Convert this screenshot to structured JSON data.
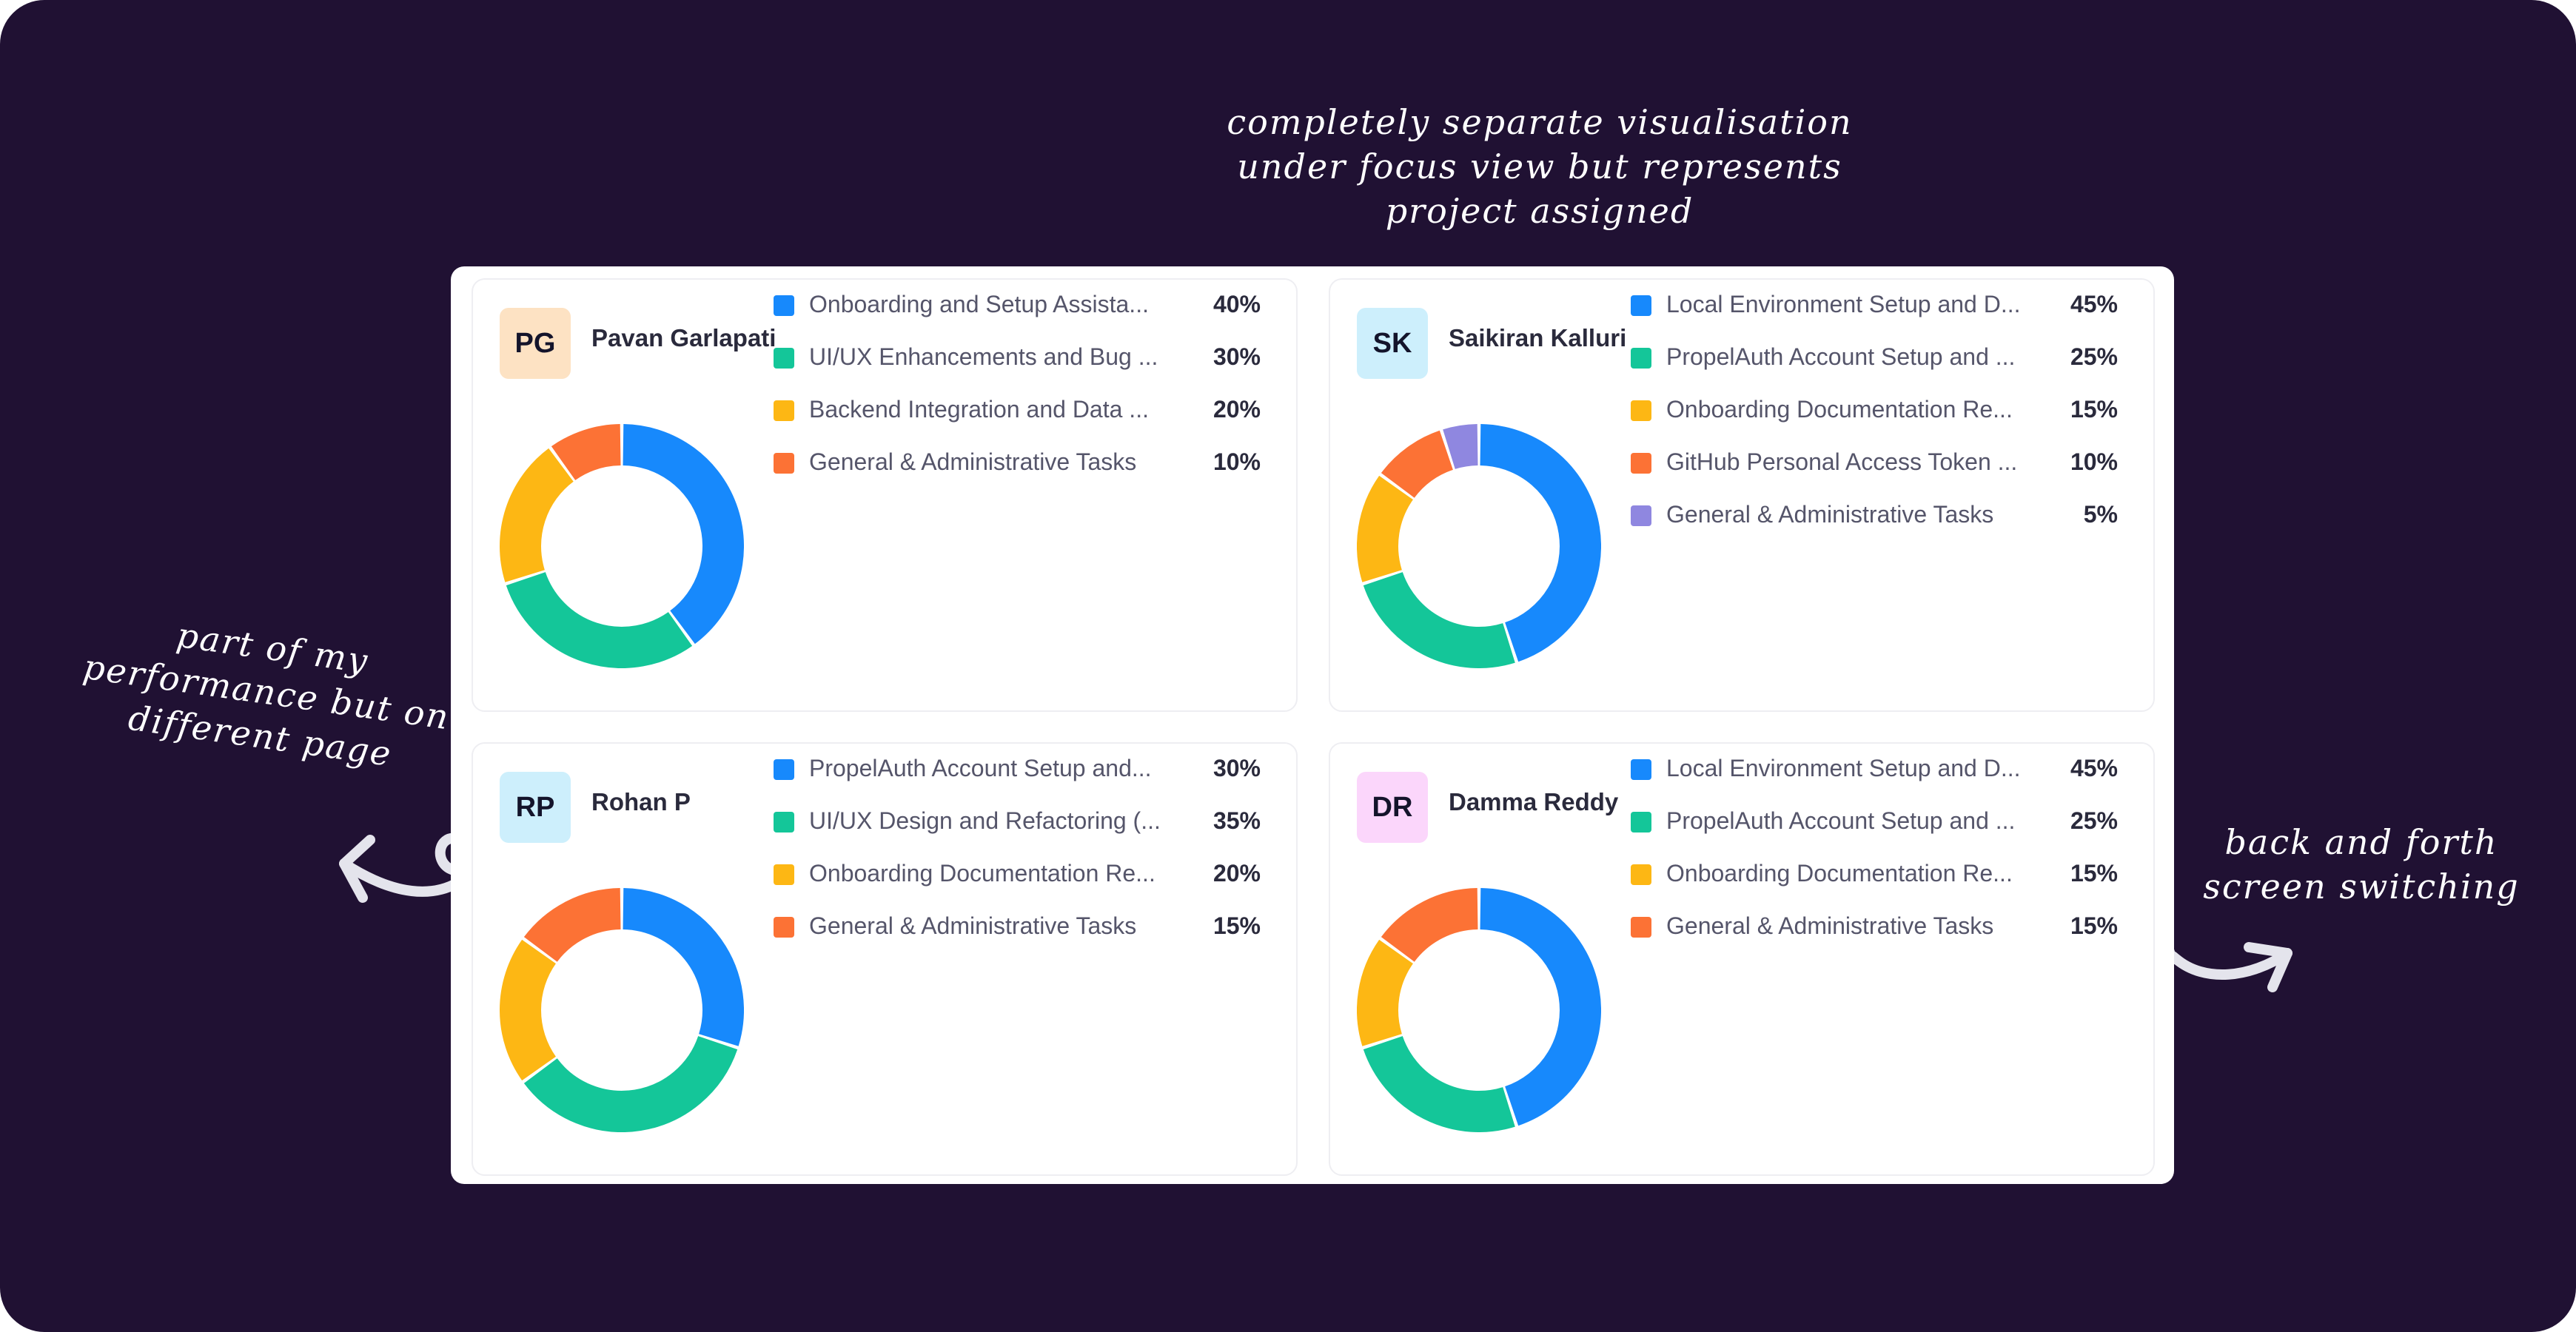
{
  "annotations": {
    "top": [
      "completely separate visualisation",
      "under focus view but represents",
      "project assigned"
    ],
    "left": [
      "part of my",
      "performance but on",
      "different page"
    ],
    "right": [
      "back and forth",
      "screen switching"
    ]
  },
  "colors": {
    "background": "#201133",
    "blue": "#1789fc",
    "green": "#14c699",
    "yellow": "#fdb714",
    "orange": "#fc7235",
    "purple": "#8f87e0"
  },
  "members": [
    {
      "initials": "PG",
      "name": "Pavan Garlapati",
      "avatar_color": "#fde2c3",
      "tasks": [
        {
          "label": "Onboarding and Setup Assista...",
          "percent": 40,
          "display": "40%",
          "color": "#1789fc"
        },
        {
          "label": "UI/UX Enhancements and Bug ...",
          "percent": 30,
          "display": "30%",
          "color": "#14c699"
        },
        {
          "label": "Backend Integration and Data ...",
          "percent": 20,
          "display": "20%",
          "color": "#fdb714"
        },
        {
          "label": "General & Administrative Tasks",
          "percent": 10,
          "display": "10%",
          "color": "#fc7235"
        }
      ]
    },
    {
      "initials": "SK",
      "name": "Saikiran Kalluri",
      "avatar_color": "#cdeffc",
      "tasks": [
        {
          "label": "Local Environment Setup and D...",
          "percent": 45,
          "display": "45%",
          "color": "#1789fc"
        },
        {
          "label": "PropelAuth Account Setup and ...",
          "percent": 25,
          "display": "25%",
          "color": "#14c699"
        },
        {
          "label": "Onboarding Documentation Re...",
          "percent": 15,
          "display": "15%",
          "color": "#fdb714"
        },
        {
          "label": "GitHub Personal Access Token ...",
          "percent": 10,
          "display": "10%",
          "color": "#fc7235"
        },
        {
          "label": "General & Administrative Tasks",
          "percent": 5,
          "display": "5%",
          "color": "#8f87e0"
        }
      ]
    },
    {
      "initials": "RP",
      "name": "Rohan P",
      "avatar_color": "#cdeffc",
      "tasks": [
        {
          "label": "PropelAuth Account Setup and...",
          "percent": 30,
          "display": "30%",
          "color": "#1789fc"
        },
        {
          "label": "UI/UX Design and Refactoring (...",
          "percent": 35,
          "display": "35%",
          "color": "#14c699"
        },
        {
          "label": "Onboarding Documentation Re...",
          "percent": 20,
          "display": "20%",
          "color": "#fdb714"
        },
        {
          "label": "General & Administrative Tasks",
          "percent": 15,
          "display": "15%",
          "color": "#fc7235"
        }
      ]
    },
    {
      "initials": "DR",
      "name": "Damma Reddy",
      "avatar_color": "#fbd6fb",
      "tasks": [
        {
          "label": "Local Environment Setup and D...",
          "percent": 45,
          "display": "45%",
          "color": "#1789fc"
        },
        {
          "label": "PropelAuth Account Setup and ...",
          "percent": 25,
          "display": "25%",
          "color": "#14c699"
        },
        {
          "label": "Onboarding Documentation Re...",
          "percent": 15,
          "display": "15%",
          "color": "#fdb714"
        },
        {
          "label": "General & Administrative Tasks",
          "percent": 15,
          "display": "15%",
          "color": "#fc7235"
        }
      ]
    }
  ]
}
